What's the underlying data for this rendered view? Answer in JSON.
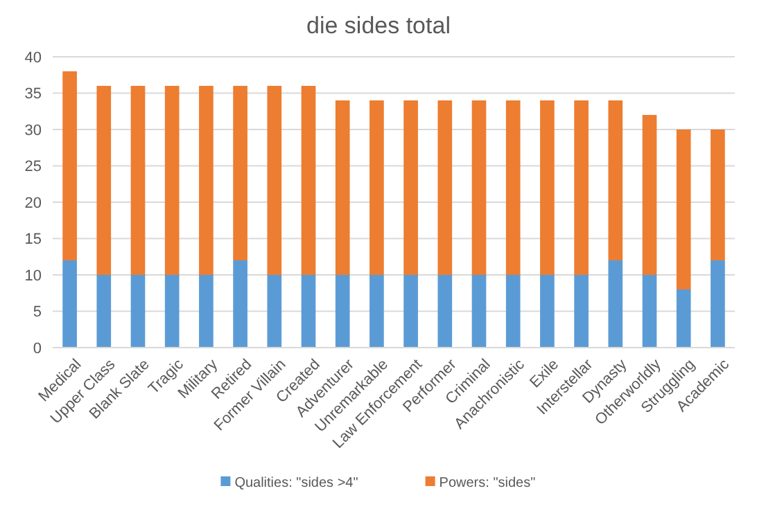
{
  "chart_data": {
    "type": "bar",
    "title": "die sides total",
    "stacked": true,
    "categories": [
      "Medical",
      "Upper Class",
      "Blank Slate",
      "Tragic",
      "Military",
      "Retired",
      "Former Villain",
      "Created",
      "Adventurer",
      "Unremarkable",
      "Law Enforcement",
      "Performer",
      "Criminal",
      "Anachronistic",
      "Exile",
      "Interstellar",
      "Dynasty",
      "Otherworldly",
      "Struggling",
      "Academic"
    ],
    "series": [
      {
        "name": "Qualities: \"sides >4\"",
        "color": "#5b9bd5",
        "values": [
          12,
          10,
          10,
          10,
          10,
          12,
          10,
          10,
          10,
          10,
          10,
          10,
          10,
          10,
          10,
          10,
          12,
          10,
          8,
          12
        ]
      },
      {
        "name": "Powers: \"sides\"",
        "color": "#ed7d31",
        "values": [
          26,
          26,
          26,
          26,
          26,
          24,
          26,
          26,
          24,
          24,
          24,
          24,
          24,
          24,
          24,
          24,
          22,
          22,
          22,
          18
        ]
      }
    ],
    "ylim": [
      0,
      40
    ],
    "yticks": [
      0,
      5,
      10,
      15,
      20,
      25,
      30,
      35,
      40
    ],
    "grid": "y",
    "legend": "bottom"
  }
}
